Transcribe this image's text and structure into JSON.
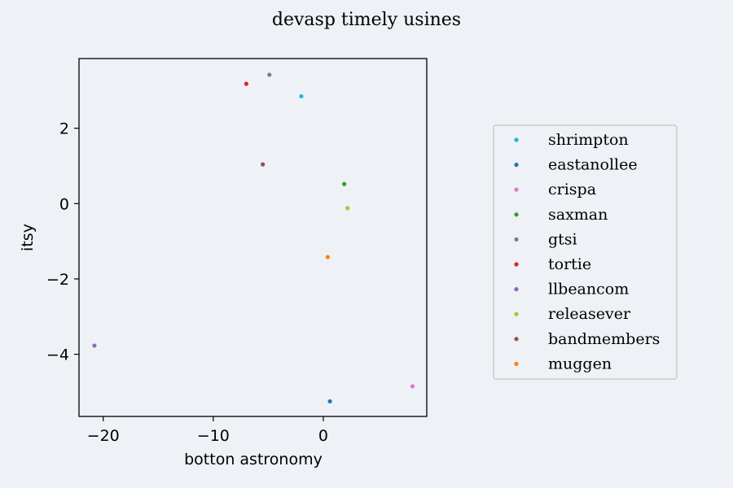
{
  "chart_data": {
    "type": "scatter",
    "title": "devasp timely usines",
    "xlabel": "botton astronomy",
    "ylabel": "itsy",
    "xlim": [
      -22.2,
      9.4
    ],
    "ylim": [
      -5.65,
      3.85
    ],
    "xticks": [
      -20,
      -10,
      0
    ],
    "xtick_labels": [
      "−20",
      "−10",
      "0"
    ],
    "yticks": [
      -4,
      -2,
      0,
      2
    ],
    "ytick_labels": [
      "−4",
      "−2",
      "0",
      "2"
    ],
    "grid": false,
    "legend_position": "right",
    "series": [
      {
        "name": "shrimpton",
        "color": "#17becf",
        "points": [
          {
            "x": -2.0,
            "y": 2.85
          }
        ]
      },
      {
        "name": "eastanollee",
        "color": "#1f77b4",
        "points": [
          {
            "x": 0.6,
            "y": -5.25
          }
        ]
      },
      {
        "name": "crispa",
        "color": "#e377c2",
        "points": [
          {
            "x": 8.1,
            "y": -4.85
          }
        ]
      },
      {
        "name": "saxman",
        "color": "#2ca02c",
        "points": [
          {
            "x": 1.9,
            "y": 0.52
          }
        ]
      },
      {
        "name": "gtsi",
        "color": "#7f7f7f",
        "points": [
          {
            "x": -4.9,
            "y": 3.42
          }
        ]
      },
      {
        "name": "tortie",
        "color": "#d62728",
        "points": [
          {
            "x": -7.0,
            "y": 3.18
          }
        ]
      },
      {
        "name": "llbeancom",
        "color": "#9467bd",
        "points": [
          {
            "x": -20.8,
            "y": -3.77
          }
        ]
      },
      {
        "name": "releasever",
        "color": "#bcbd22",
        "points": [
          {
            "x": 2.2,
            "y": -0.12
          }
        ]
      },
      {
        "name": "bandmembers",
        "color": "#8c564b",
        "points": [
          {
            "x": -5.5,
            "y": 1.04
          }
        ]
      },
      {
        "name": "muggen",
        "color": "#ff7f0e",
        "points": [
          {
            "x": 0.4,
            "y": -1.42
          }
        ]
      }
    ]
  }
}
